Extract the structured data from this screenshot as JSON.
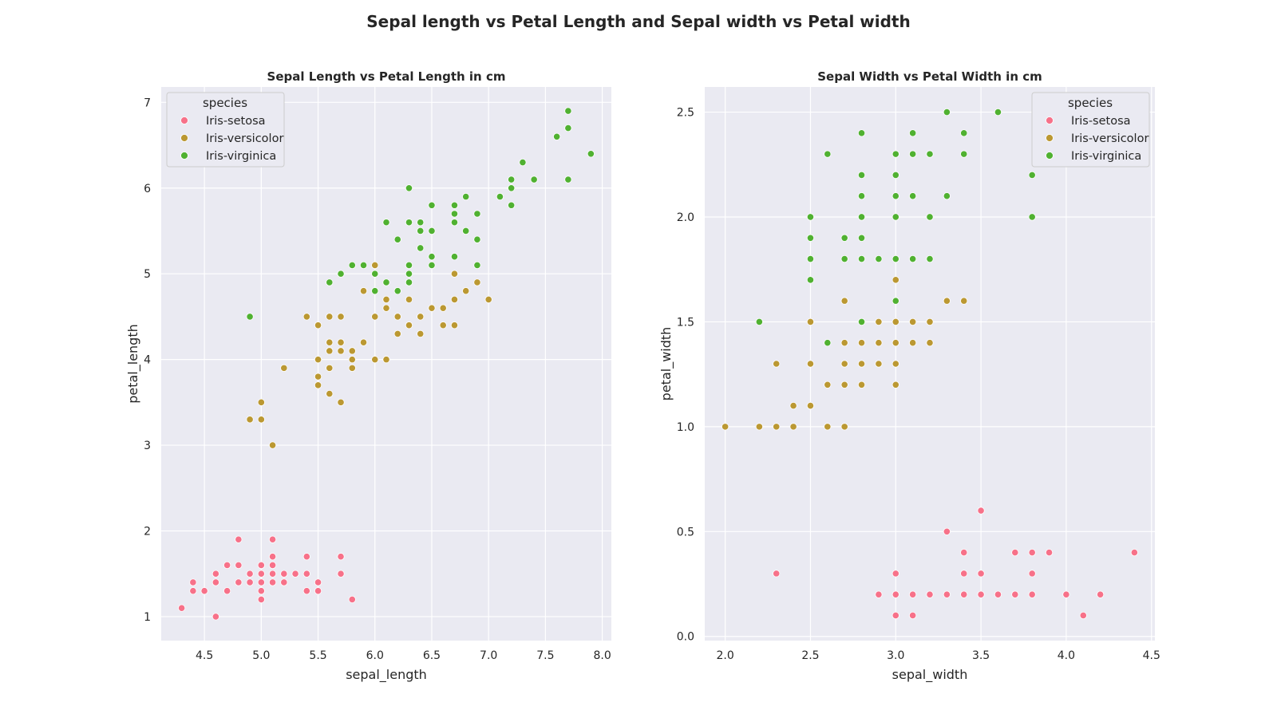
{
  "figure": {
    "title": "Sepal length vs Petal Length and Sepal width vs Petal width"
  },
  "legend": {
    "title": "species",
    "entries": [
      {
        "name": "Iris-setosa",
        "color": "#f77189"
      },
      {
        "name": "Iris-versicolor",
        "color": "#bb9832"
      },
      {
        "name": "Iris-virginica",
        "color": "#50b131"
      }
    ]
  },
  "chart_data": [
    {
      "type": "scatter",
      "title": "Sepal Length vs Petal Length in cm",
      "xlabel": "sepal_length",
      "ylabel": "petal_length",
      "xlim": [
        4.12,
        8.08
      ],
      "ylim": [
        0.72,
        7.18
      ],
      "xticks": [
        4.5,
        5.0,
        5.5,
        6.0,
        6.5,
        7.0,
        7.5,
        8.0
      ],
      "yticks": [
        1,
        2,
        3,
        4,
        5,
        6,
        7
      ],
      "xtick_labels": [
        "4.5",
        "5.0",
        "5.5",
        "6.0",
        "6.5",
        "7.0",
        "7.5",
        "8.0"
      ],
      "ytick_labels": [
        "1",
        "2",
        "3",
        "4",
        "5",
        "6",
        "7"
      ],
      "grid": true,
      "legend_position": "upper-left",
      "series": [
        {
          "name": "Iris-setosa",
          "points": [
            [
              4.3,
              1.1
            ],
            [
              4.4,
              1.4
            ],
            [
              4.4,
              1.3
            ],
            [
              4.5,
              1.3
            ],
            [
              4.6,
              1.5
            ],
            [
              4.6,
              1.4
            ],
            [
              4.6,
              1.0
            ],
            [
              4.7,
              1.6
            ],
            [
              4.7,
              1.3
            ],
            [
              4.8,
              1.9
            ],
            [
              4.8,
              1.6
            ],
            [
              4.8,
              1.4
            ],
            [
              4.9,
              1.5
            ],
            [
              4.9,
              1.4
            ],
            [
              5.0,
              1.6
            ],
            [
              5.0,
              1.5
            ],
            [
              5.0,
              1.4
            ],
            [
              5.0,
              1.3
            ],
            [
              5.0,
              1.2
            ],
            [
              5.1,
              1.9
            ],
            [
              5.1,
              1.7
            ],
            [
              5.1,
              1.6
            ],
            [
              5.1,
              1.5
            ],
            [
              5.1,
              1.4
            ],
            [
              5.2,
              1.5
            ],
            [
              5.2,
              1.4
            ],
            [
              5.3,
              1.5
            ],
            [
              5.4,
              1.7
            ],
            [
              5.4,
              1.5
            ],
            [
              5.4,
              1.3
            ],
            [
              5.5,
              1.4
            ],
            [
              5.5,
              1.3
            ],
            [
              5.7,
              1.7
            ],
            [
              5.7,
              1.5
            ],
            [
              5.8,
              1.2
            ]
          ]
        },
        {
          "name": "Iris-versicolor",
          "points": [
            [
              4.9,
              3.3
            ],
            [
              5.0,
              3.5
            ],
            [
              5.0,
              3.3
            ],
            [
              5.1,
              3.0
            ],
            [
              5.2,
              3.9
            ],
            [
              5.4,
              4.5
            ],
            [
              5.5,
              4.4
            ],
            [
              5.5,
              4.0
            ],
            [
              5.5,
              3.8
            ],
            [
              5.5,
              3.7
            ],
            [
              5.6,
              4.5
            ],
            [
              5.6,
              4.2
            ],
            [
              5.6,
              4.1
            ],
            [
              5.6,
              3.9
            ],
            [
              5.6,
              3.6
            ],
            [
              5.7,
              4.5
            ],
            [
              5.7,
              4.2
            ],
            [
              5.7,
              4.1
            ],
            [
              5.7,
              3.5
            ],
            [
              5.8,
              4.1
            ],
            [
              5.8,
              4.0
            ],
            [
              5.8,
              3.9
            ],
            [
              5.9,
              4.8
            ],
            [
              5.9,
              4.2
            ],
            [
              6.0,
              5.1
            ],
            [
              6.0,
              4.5
            ],
            [
              6.0,
              4.0
            ],
            [
              6.1,
              4.7
            ],
            [
              6.1,
              4.6
            ],
            [
              6.1,
              4.0
            ],
            [
              6.2,
              4.5
            ],
            [
              6.2,
              4.3
            ],
            [
              6.3,
              4.9
            ],
            [
              6.3,
              4.7
            ],
            [
              6.3,
              4.4
            ],
            [
              6.4,
              4.5
            ],
            [
              6.4,
              4.3
            ],
            [
              6.5,
              4.6
            ],
            [
              6.6,
              4.6
            ],
            [
              6.6,
              4.4
            ],
            [
              6.7,
              5.0
            ],
            [
              6.7,
              4.7
            ],
            [
              6.7,
              4.4
            ],
            [
              6.8,
              4.8
            ],
            [
              6.9,
              4.9
            ],
            [
              7.0,
              4.7
            ]
          ]
        },
        {
          "name": "Iris-virginica",
          "points": [
            [
              4.9,
              4.5
            ],
            [
              5.6,
              4.9
            ],
            [
              5.7,
              5.0
            ],
            [
              5.8,
              5.1
            ],
            [
              5.9,
              5.1
            ],
            [
              6.0,
              5.0
            ],
            [
              6.0,
              4.8
            ],
            [
              6.1,
              5.6
            ],
            [
              6.1,
              4.9
            ],
            [
              6.2,
              5.4
            ],
            [
              6.2,
              4.8
            ],
            [
              6.3,
              6.0
            ],
            [
              6.3,
              5.6
            ],
            [
              6.3,
              5.1
            ],
            [
              6.3,
              5.0
            ],
            [
              6.3,
              4.9
            ],
            [
              6.4,
              5.6
            ],
            [
              6.4,
              5.5
            ],
            [
              6.4,
              5.3
            ],
            [
              6.5,
              5.8
            ],
            [
              6.5,
              5.5
            ],
            [
              6.5,
              5.2
            ],
            [
              6.5,
              5.1
            ],
            [
              6.7,
              5.8
            ],
            [
              6.7,
              5.7
            ],
            [
              6.7,
              5.6
            ],
            [
              6.7,
              5.2
            ],
            [
              6.8,
              5.9
            ],
            [
              6.8,
              5.5
            ],
            [
              6.9,
              5.7
            ],
            [
              6.9,
              5.4
            ],
            [
              6.9,
              5.1
            ],
            [
              7.1,
              5.9
            ],
            [
              7.2,
              6.1
            ],
            [
              7.2,
              6.0
            ],
            [
              7.2,
              5.8
            ],
            [
              7.3,
              6.3
            ],
            [
              7.4,
              6.1
            ],
            [
              7.6,
              6.6
            ],
            [
              7.7,
              6.9
            ],
            [
              7.7,
              6.7
            ],
            [
              7.7,
              6.1
            ],
            [
              7.9,
              6.4
            ]
          ]
        }
      ]
    },
    {
      "type": "scatter",
      "title": "Sepal Width vs Petal Width in cm",
      "xlabel": "sepal_width",
      "ylabel": "petal_width",
      "xlim": [
        1.88,
        4.52
      ],
      "ylim": [
        -0.02,
        2.62
      ],
      "xticks": [
        2.0,
        2.5,
        3.0,
        3.5,
        4.0,
        4.5
      ],
      "yticks": [
        0.0,
        0.5,
        1.0,
        1.5,
        2.0,
        2.5
      ],
      "xtick_labels": [
        "2.0",
        "2.5",
        "3.0",
        "3.5",
        "4.0",
        "4.5"
      ],
      "ytick_labels": [
        "0.0",
        "0.5",
        "1.0",
        "1.5",
        "2.0",
        "2.5"
      ],
      "grid": true,
      "legend_position": "upper-right",
      "series": [
        {
          "name": "Iris-setosa",
          "points": [
            [
              2.3,
              0.3
            ],
            [
              2.9,
              0.2
            ],
            [
              3.0,
              0.3
            ],
            [
              3.0,
              0.2
            ],
            [
              3.0,
              0.1
            ],
            [
              3.1,
              0.2
            ],
            [
              3.1,
              0.1
            ],
            [
              3.2,
              0.2
            ],
            [
              3.3,
              0.5
            ],
            [
              3.3,
              0.2
            ],
            [
              3.4,
              0.4
            ],
            [
              3.4,
              0.3
            ],
            [
              3.4,
              0.2
            ],
            [
              3.5,
              0.6
            ],
            [
              3.5,
              0.3
            ],
            [
              3.5,
              0.2
            ],
            [
              3.6,
              0.2
            ],
            [
              3.7,
              0.4
            ],
            [
              3.7,
              0.2
            ],
            [
              3.8,
              0.4
            ],
            [
              3.8,
              0.3
            ],
            [
              3.8,
              0.2
            ],
            [
              3.9,
              0.4
            ],
            [
              4.0,
              0.2
            ],
            [
              4.1,
              0.1
            ],
            [
              4.2,
              0.2
            ],
            [
              4.4,
              0.4
            ]
          ]
        },
        {
          "name": "Iris-versicolor",
          "points": [
            [
              2.0,
              1.0
            ],
            [
              2.2,
              1.0
            ],
            [
              2.3,
              1.3
            ],
            [
              2.3,
              1.0
            ],
            [
              2.4,
              1.1
            ],
            [
              2.4,
              1.0
            ],
            [
              2.5,
              1.5
            ],
            [
              2.5,
              1.3
            ],
            [
              2.5,
              1.1
            ],
            [
              2.6,
              1.2
            ],
            [
              2.6,
              1.0
            ],
            [
              2.7,
              1.6
            ],
            [
              2.7,
              1.4
            ],
            [
              2.7,
              1.3
            ],
            [
              2.7,
              1.2
            ],
            [
              2.7,
              1.0
            ],
            [
              2.8,
              1.5
            ],
            [
              2.8,
              1.4
            ],
            [
              2.8,
              1.3
            ],
            [
              2.8,
              1.2
            ],
            [
              2.9,
              1.5
            ],
            [
              2.9,
              1.4
            ],
            [
              2.9,
              1.3
            ],
            [
              3.0,
              1.7
            ],
            [
              3.0,
              1.5
            ],
            [
              3.0,
              1.4
            ],
            [
              3.0,
              1.3
            ],
            [
              3.0,
              1.2
            ],
            [
              3.1,
              1.5
            ],
            [
              3.1,
              1.4
            ],
            [
              3.2,
              1.5
            ],
            [
              3.2,
              1.4
            ],
            [
              3.3,
              1.6
            ],
            [
              3.4,
              1.6
            ]
          ]
        },
        {
          "name": "Iris-virginica",
          "points": [
            [
              2.2,
              1.5
            ],
            [
              2.5,
              2.0
            ],
            [
              2.5,
              1.9
            ],
            [
              2.5,
              1.8
            ],
            [
              2.5,
              1.7
            ],
            [
              2.6,
              2.3
            ],
            [
              2.6,
              1.4
            ],
            [
              2.7,
              1.9
            ],
            [
              2.7,
              1.8
            ],
            [
              2.8,
              2.4
            ],
            [
              2.8,
              2.2
            ],
            [
              2.8,
              2.1
            ],
            [
              2.8,
              2.0
            ],
            [
              2.8,
              1.9
            ],
            [
              2.8,
              1.8
            ],
            [
              2.8,
              1.5
            ],
            [
              2.9,
              1.8
            ],
            [
              3.0,
              2.3
            ],
            [
              3.0,
              2.2
            ],
            [
              3.0,
              2.1
            ],
            [
              3.0,
              2.0
            ],
            [
              3.0,
              1.8
            ],
            [
              3.0,
              1.6
            ],
            [
              3.1,
              2.4
            ],
            [
              3.1,
              2.3
            ],
            [
              3.1,
              2.1
            ],
            [
              3.1,
              1.8
            ],
            [
              3.2,
              2.3
            ],
            [
              3.2,
              2.0
            ],
            [
              3.2,
              1.8
            ],
            [
              3.3,
              2.5
            ],
            [
              3.3,
              2.1
            ],
            [
              3.4,
              2.4
            ],
            [
              3.4,
              2.3
            ],
            [
              3.6,
              2.5
            ],
            [
              3.8,
              2.2
            ],
            [
              3.8,
              2.0
            ]
          ]
        }
      ]
    }
  ]
}
